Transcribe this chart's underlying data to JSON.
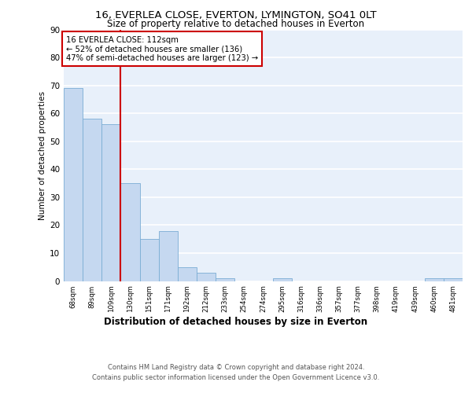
{
  "title_line1": "16, EVERLEA CLOSE, EVERTON, LYMINGTON, SO41 0LT",
  "title_line2": "Size of property relative to detached houses in Everton",
  "xlabel": "Distribution of detached houses by size in Everton",
  "ylabel": "Number of detached properties",
  "categories": [
    "68sqm",
    "89sqm",
    "109sqm",
    "130sqm",
    "151sqm",
    "171sqm",
    "192sqm",
    "212sqm",
    "233sqm",
    "254sqm",
    "274sqm",
    "295sqm",
    "316sqm",
    "336sqm",
    "357sqm",
    "377sqm",
    "398sqm",
    "419sqm",
    "439sqm",
    "460sqm",
    "481sqm"
  ],
  "values": [
    69,
    58,
    56,
    35,
    15,
    18,
    5,
    3,
    1,
    0,
    0,
    1,
    0,
    0,
    0,
    0,
    0,
    0,
    0,
    1,
    1
  ],
  "bar_color": "#c5d8f0",
  "bar_edge_color": "#7aadd4",
  "bg_color": "#e8f0fa",
  "grid_color": "#ffffff",
  "vline_color": "#cc0000",
  "annotation_text": "16 EVERLEA CLOSE: 112sqm\n← 52% of detached houses are smaller (136)\n47% of semi-detached houses are larger (123) →",
  "annotation_box_color": "#ffffff",
  "annotation_box_edge": "#cc0000",
  "footer_line1": "Contains HM Land Registry data © Crown copyright and database right 2024.",
  "footer_line2": "Contains public sector information licensed under the Open Government Licence v3.0.",
  "ylim": [
    0,
    90
  ],
  "yticks": [
    0,
    10,
    20,
    30,
    40,
    50,
    60,
    70,
    80,
    90
  ]
}
